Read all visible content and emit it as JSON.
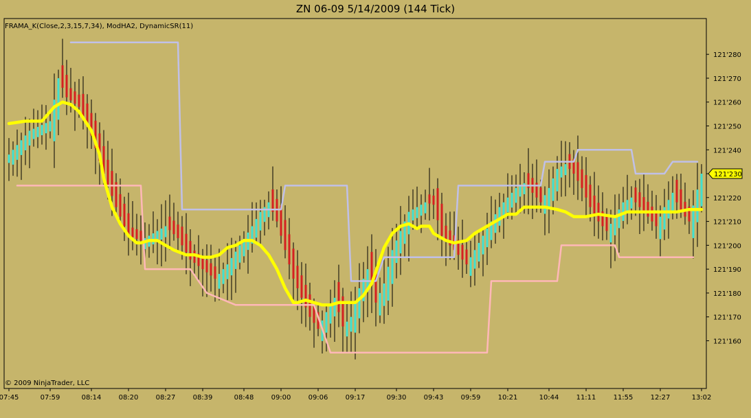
{
  "chart_data": {
    "type": "candlestick",
    "title": "ZN 06-09  5/14/2009 (144 Tick)",
    "indicator_label": "FRAMA_K(Close,2,3,15,7,34), ModHA2, DynamicSR(11)",
    "copyright": "© 2009 NinjaTrader, LLC",
    "y_ticks": [
      "121'280",
      "121'270",
      "121'260",
      "121'250",
      "121'240",
      "121'230",
      "121'220",
      "121'210",
      "121'200",
      "121'190",
      "121'180",
      "121'170",
      "121'160"
    ],
    "y_tick_values": [
      128,
      127,
      126,
      125,
      124,
      123,
      122,
      121,
      120,
      119,
      118,
      117,
      116
    ],
    "y_range": [
      114.0,
      129.5
    ],
    "x_ticks": [
      "07:45",
      "07:59",
      "08:14",
      "08:20",
      "08:27",
      "08:39",
      "08:48",
      "09:00",
      "09:06",
      "09:17",
      "09:30",
      "09:43",
      "09:59",
      "10:21",
      "10:44",
      "11:11",
      "11:55",
      "12:27",
      "13:02"
    ],
    "x_tick_bars": [
      0,
      10,
      20,
      29,
      38,
      47,
      57,
      66,
      75,
      84,
      94,
      103,
      112,
      121,
      131,
      140,
      149,
      158,
      168
    ],
    "n_bars": 169,
    "current_price_label": "121'230",
    "current_price": 123.0,
    "colors": {
      "background": "#c6b56b",
      "up": "#40e0d0",
      "down": "#d42020",
      "wick": "#000000",
      "frama": "#ffff00",
      "resistance": "#c0c0e8",
      "support": "#ffb8b8",
      "price_marker": "#ffff00"
    },
    "frama_x": [
      0,
      4,
      8,
      11,
      13,
      15,
      17,
      20,
      22,
      23,
      25,
      27,
      29,
      31,
      32,
      34,
      36,
      38,
      40,
      43,
      45,
      47,
      49,
      51,
      53,
      55,
      57,
      59,
      61,
      63,
      65,
      67,
      69,
      70,
      72,
      74,
      76,
      78,
      80,
      82,
      84,
      86,
      88,
      89,
      91,
      93,
      95,
      97,
      98,
      99,
      100,
      102,
      103,
      105,
      106,
      108,
      111,
      113,
      116,
      119,
      121,
      123,
      125,
      128,
      130,
      133,
      135,
      137,
      140,
      143,
      147,
      150,
      153,
      156,
      159,
      162,
      165,
      168
    ],
    "frama_y": [
      125.1,
      125.2,
      125.2,
      125.8,
      126.0,
      125.9,
      125.6,
      124.8,
      123.8,
      122.8,
      121.6,
      120.9,
      120.4,
      120.1,
      120.1,
      120.2,
      120.2,
      120.0,
      119.8,
      119.6,
      119.6,
      119.5,
      119.5,
      119.6,
      119.9,
      120.0,
      120.2,
      120.2,
      120.0,
      119.6,
      119.0,
      118.2,
      117.6,
      117.6,
      117.7,
      117.6,
      117.5,
      117.5,
      117.6,
      117.6,
      117.6,
      117.9,
      118.4,
      118.9,
      119.9,
      120.5,
      120.8,
      120.9,
      120.8,
      120.7,
      120.8,
      120.8,
      120.5,
      120.3,
      120.2,
      120.1,
      120.2,
      120.5,
      120.8,
      121.1,
      121.3,
      121.3,
      121.6,
      121.6,
      121.6,
      121.5,
      121.4,
      121.2,
      121.2,
      121.3,
      121.2,
      121.4,
      121.4,
      121.4,
      121.4,
      121.4,
      121.5,
      121.5
    ],
    "resistance_x": [
      15,
      41,
      41,
      42,
      42,
      66,
      66,
      67,
      67,
      82,
      82,
      83,
      83,
      89,
      89,
      91,
      91,
      108,
      108,
      109,
      109,
      129,
      129,
      130,
      130,
      137,
      137,
      138,
      138,
      151,
      151,
      152,
      152,
      159,
      159,
      161,
      161,
      167
    ],
    "resistance_y": [
      128.5,
      128.5,
      128.5,
      121.5,
      121.5,
      121.5,
      121.5,
      122.5,
      122.5,
      122.5,
      122.5,
      118.5,
      118.5,
      118.5,
      118.5,
      119.5,
      119.5,
      119.5,
      119.5,
      122.5,
      122.5,
      122.5,
      122.5,
      123.5,
      123.5,
      123.5,
      123.5,
      124.0,
      124.0,
      124.0,
      124.0,
      123.0,
      123.0,
      123.0,
      123.0,
      123.5,
      123.5,
      123.5
    ],
    "support_x": [
      2,
      32,
      32,
      33,
      33,
      44,
      44,
      48,
      48,
      55,
      55,
      74,
      74,
      78,
      78,
      116,
      116,
      117,
      117,
      133,
      133,
      134,
      134,
      147,
      147,
      148,
      148,
      166
    ],
    "support_y": [
      122.5,
      122.5,
      122.5,
      119.0,
      119.0,
      119.0,
      119.0,
      118.0,
      118.0,
      117.5,
      117.5,
      117.5,
      117.5,
      115.5,
      115.5,
      115.5,
      115.5,
      118.5,
      118.5,
      118.5,
      118.5,
      120.0,
      120.0,
      120.0,
      120.0,
      119.5,
      119.5,
      119.5
    ],
    "close_x": [
      0,
      5,
      10,
      12,
      14,
      17,
      20,
      23,
      26,
      29,
      32,
      35,
      38,
      41,
      44,
      47,
      50,
      53,
      56,
      59,
      61,
      63,
      65,
      67,
      69,
      71,
      73,
      75,
      77,
      79,
      81,
      83,
      85,
      87,
      89,
      91,
      93,
      95,
      97,
      99,
      101,
      103,
      105,
      107,
      109,
      111,
      113,
      115,
      117,
      119,
      121,
      123,
      125,
      127,
      129,
      131,
      133,
      135,
      137,
      139,
      141,
      143,
      145,
      147,
      149,
      151,
      153,
      155,
      157,
      159,
      161,
      163,
      165,
      168
    ],
    "close_y": [
      123.8,
      124.8,
      125.2,
      127.0,
      126.2,
      125.8,
      124.6,
      123.0,
      121.6,
      120.4,
      120.2,
      120.5,
      120.8,
      120.3,
      119.4,
      119.0,
      118.6,
      119.2,
      120.0,
      120.8,
      121.4,
      121.8,
      121.0,
      119.8,
      118.6,
      117.8,
      117.0,
      116.5,
      117.2,
      117.8,
      116.6,
      117.0,
      118.2,
      119.0,
      117.6,
      118.4,
      119.8,
      120.6,
      121.4,
      121.6,
      121.8,
      121.7,
      120.4,
      120.0,
      119.6,
      119.2,
      119.8,
      120.4,
      121.0,
      121.6,
      122.0,
      122.4,
      122.6,
      122.2,
      121.8,
      122.4,
      123.2,
      123.4,
      123.0,
      122.4,
      121.6,
      121.0,
      120.6,
      121.2,
      121.8,
      122.0,
      121.6,
      121.2,
      120.8,
      121.6,
      122.2,
      121.4,
      121.0,
      123.0
    ]
  }
}
